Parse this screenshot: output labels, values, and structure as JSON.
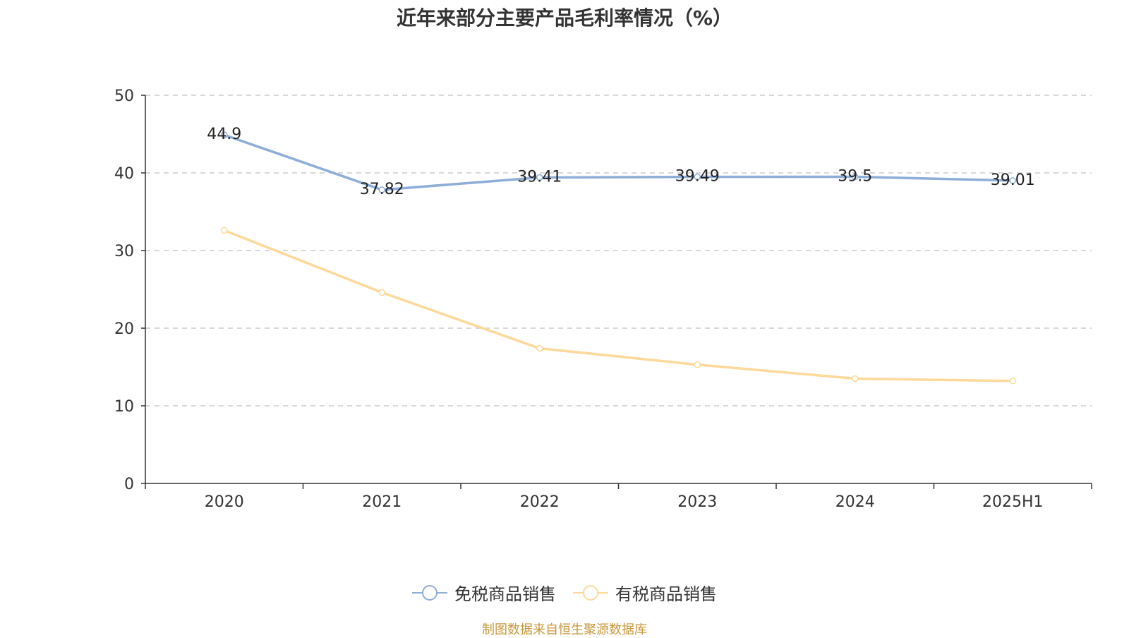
{
  "title": "近年来部分主要产品毛利率情况（%）",
  "source": "制图数据来自恒生聚源数据库",
  "chart_data": {
    "type": "line",
    "title": "近年来部分主要产品毛利率情况（%）",
    "categories": [
      "2020",
      "2021",
      "2022",
      "2023",
      "2024",
      "2025H1"
    ],
    "ylim": [
      0,
      50
    ],
    "yticks": [
      0,
      10,
      20,
      30,
      40,
      50
    ],
    "grid": true,
    "legend_position": "bottom-center",
    "series": [
      {
        "name": "免税商品销售",
        "color": "#8eadd8",
        "values": [
          44.9,
          37.82,
          39.41,
          39.49,
          39.5,
          39.01
        ],
        "labels": [
          "44.9",
          "37.82",
          "39.41",
          "39.49",
          "39.5",
          "39.01"
        ],
        "show_labels": true
      },
      {
        "name": "有税商品销售",
        "color": "#fdd99a",
        "values": [
          32.6,
          24.6,
          17.4,
          15.3,
          13.5,
          13.2
        ],
        "show_labels": false
      }
    ]
  }
}
